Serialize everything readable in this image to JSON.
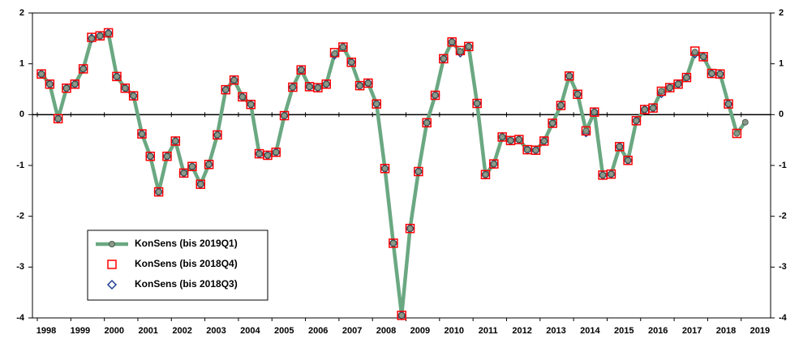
{
  "chart_data": {
    "type": "line",
    "categories": [
      "1998",
      null,
      null,
      null,
      "1999",
      null,
      null,
      null,
      "2000",
      null,
      null,
      null,
      "2001",
      null,
      null,
      null,
      "2002",
      null,
      null,
      null,
      "2003",
      null,
      null,
      null,
      "2004",
      null,
      null,
      null,
      "2005",
      null,
      null,
      null,
      "2006",
      null,
      null,
      null,
      "2007",
      null,
      null,
      null,
      "2008",
      null,
      null,
      null,
      "2009",
      null,
      null,
      null,
      "2010",
      null,
      null,
      null,
      "2011",
      null,
      null,
      null,
      "2012",
      null,
      null,
      null,
      "2013",
      null,
      null,
      null,
      "2014",
      null,
      null,
      null,
      "2015",
      null,
      null,
      null,
      "2016",
      null,
      null,
      null,
      "2017",
      null,
      null,
      null,
      "2018",
      null,
      null,
      null,
      "2019"
    ],
    "series": [
      {
        "name": "KonSens (bis 2019Q1)",
        "color": "#6aa882",
        "marker": "circle",
        "values": [
          0.8,
          0.6,
          -0.08,
          0.52,
          0.6,
          0.9,
          1.5,
          1.55,
          1.6,
          0.75,
          0.52,
          0.37,
          -0.38,
          -0.82,
          -1.52,
          -0.82,
          -0.52,
          -1.15,
          -1.02,
          -1.37,
          -0.98,
          -0.4,
          0.49,
          0.68,
          0.35,
          0.2,
          -0.77,
          -0.8,
          -0.74,
          -0.02,
          0.54,
          0.88,
          0.55,
          0.53,
          0.6,
          1.2,
          1.33,
          1.03,
          0.57,
          0.62,
          0.21,
          -1.06,
          -2.53,
          -3.95,
          -2.24,
          -1.12,
          -0.16,
          0.38,
          1.1,
          1.43,
          1.24,
          1.34,
          0.22,
          -1.18,
          -0.97,
          -0.44,
          -0.51,
          -0.49,
          -0.69,
          -0.7,
          -0.52,
          -0.17,
          0.18,
          0.76,
          0.4,
          -0.32,
          0.05,
          -1.19,
          -1.17,
          -0.63,
          -0.9,
          -0.12,
          0.1,
          0.13,
          0.46,
          0.53,
          0.6,
          0.73,
          1.23,
          1.14,
          0.81,
          0.8,
          0.21,
          -0.37,
          -0.15
        ]
      },
      {
        "name": "KonSens (bis 2018Q4)",
        "color": "#ff0000",
        "marker": "square",
        "values": [
          0.8,
          0.6,
          -0.08,
          0.52,
          0.6,
          0.9,
          1.52,
          1.55,
          1.61,
          0.75,
          0.52,
          0.37,
          -0.38,
          -0.82,
          -1.52,
          -0.82,
          -0.52,
          -1.15,
          -1.02,
          -1.37,
          -0.98,
          -0.4,
          0.49,
          0.68,
          0.35,
          0.2,
          -0.77,
          -0.8,
          -0.74,
          -0.02,
          0.54,
          0.88,
          0.55,
          0.53,
          0.6,
          1.22,
          1.33,
          1.03,
          0.57,
          0.62,
          0.21,
          -1.06,
          -2.53,
          -3.95,
          -2.24,
          -1.12,
          -0.16,
          0.38,
          1.1,
          1.43,
          1.26,
          1.34,
          0.22,
          -1.18,
          -0.97,
          -0.44,
          -0.51,
          -0.49,
          -0.69,
          -0.7,
          -0.52,
          -0.17,
          0.18,
          0.76,
          0.4,
          -0.32,
          0.05,
          -1.19,
          -1.17,
          -0.63,
          -0.9,
          -0.12,
          0.1,
          0.13,
          0.46,
          0.53,
          0.6,
          0.73,
          1.25,
          1.14,
          0.81,
          0.8,
          0.21,
          -0.37,
          null
        ]
      },
      {
        "name": "KonSens (bis 2018Q3)",
        "color": "#1f3f8f",
        "marker": "diamond",
        "values": [
          0.8,
          0.6,
          -0.08,
          0.52,
          0.6,
          0.9,
          1.5,
          1.55,
          1.6,
          0.75,
          0.52,
          0.37,
          -0.38,
          -0.82,
          -1.52,
          -0.82,
          -0.52,
          -1.15,
          -1.02,
          -1.37,
          -0.98,
          -0.4,
          0.49,
          0.68,
          0.35,
          0.2,
          -0.77,
          -0.8,
          -0.74,
          -0.02,
          0.54,
          0.88,
          0.55,
          0.53,
          0.6,
          1.18,
          1.33,
          1.03,
          0.57,
          0.62,
          0.21,
          -1.06,
          -2.53,
          -3.95,
          -2.24,
          -1.12,
          -0.16,
          0.38,
          1.1,
          1.43,
          1.22,
          1.34,
          0.22,
          -1.18,
          -0.97,
          -0.44,
          -0.51,
          -0.49,
          -0.69,
          -0.7,
          -0.52,
          -0.17,
          0.18,
          0.76,
          0.4,
          -0.35,
          0.05,
          -1.19,
          -1.17,
          -0.63,
          -0.9,
          -0.12,
          0.1,
          0.13,
          0.42,
          0.53,
          0.6,
          0.73,
          1.2,
          1.14,
          0.81,
          0.8,
          0.21,
          null,
          null
        ]
      }
    ],
    "ylim": [
      -4,
      2
    ],
    "yticks": [
      -4,
      -3,
      -2,
      -1,
      0,
      1,
      2
    ],
    "y2lim": [
      -4,
      2
    ],
    "y2ticks": [
      -4,
      -3,
      -2,
      -1,
      0,
      1,
      2
    ],
    "legend": "lower left"
  }
}
